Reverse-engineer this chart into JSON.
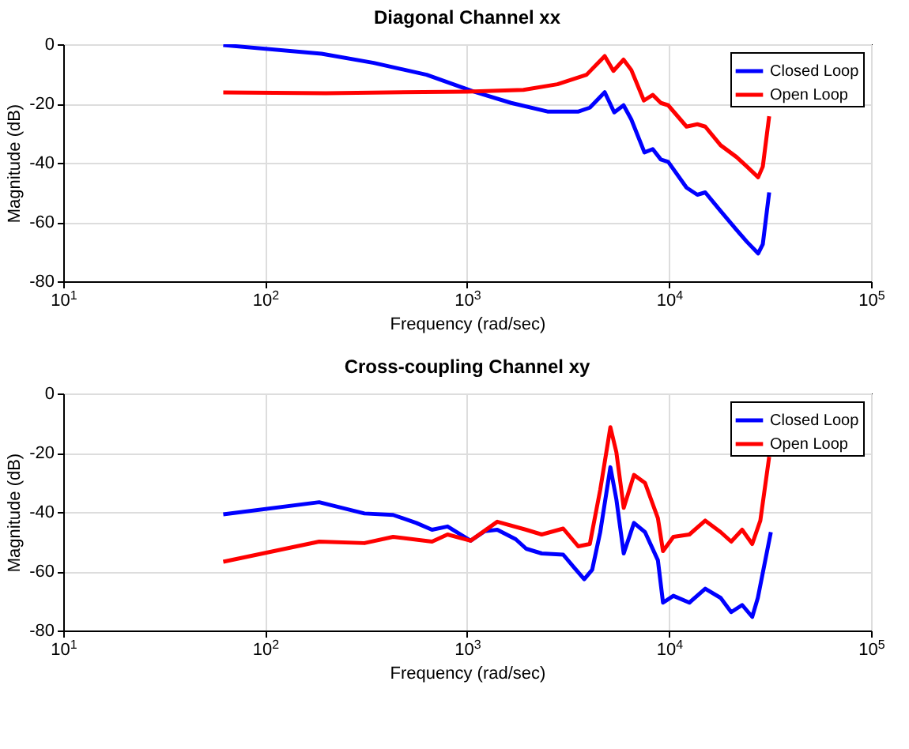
{
  "chart_data": [
    {
      "type": "line",
      "title": "Diagonal Channel xx",
      "xlabel": "Frequency (rad/sec)",
      "ylabel": "Magnitude (dB)",
      "log": "x",
      "grid": true,
      "legend": "top right",
      "xlim": [
        10,
        100000
      ],
      "xticks": [
        {
          "value": 10,
          "label": "10$^{1}$"
        },
        {
          "value": 100,
          "label": "10$^{2}$"
        },
        {
          "value": 1000,
          "label": "10$^{3}$"
        },
        {
          "value": 10000,
          "label": "10$^{4}$"
        },
        {
          "value": 100000,
          "label": "10$^{5}$"
        }
      ],
      "ylim": [
        -80,
        0
      ],
      "yticks": [
        -80,
        -60,
        -40,
        -20,
        0
      ],
      "series": [
        {
          "name": "Closed Loop",
          "color": "#0000ff",
          "x": [
            62,
            190,
            345,
            630,
            1070,
            1650,
            2500,
            3560,
            4050,
            4800,
            5350,
            5950,
            6500,
            7550,
            8300,
            9100,
            9900,
            12200,
            13800,
            15100,
            18000,
            21600,
            24300,
            27600,
            29100,
            31300
          ],
          "values": [
            -0.3,
            -3.2,
            -6.3,
            -10.3,
            -15.9,
            -19.8,
            -22.7,
            -22.7,
            -21.4,
            -16.2,
            -23,
            -20.6,
            -25.4,
            -36.5,
            -35.4,
            -38.9,
            -39.7,
            -48.4,
            -50.8,
            -50,
            -56.3,
            -62.7,
            -66.7,
            -70.6,
            -67.5,
            -50
          ]
        },
        {
          "name": "Open Loop",
          "color": "#ff0000",
          "x": [
            62,
            200,
            1000,
            1900,
            2800,
            3900,
            4800,
            5300,
            5950,
            6500,
            7500,
            8300,
            9100,
            9900,
            12200,
            13800,
            15100,
            18000,
            21600,
            24300,
            27600,
            29100,
            31300
          ],
          "values": [
            -16.3,
            -16.5,
            -16,
            -15.4,
            -13.5,
            -10.3,
            -4,
            -9,
            -5.2,
            -8.7,
            -19,
            -17.1,
            -19.8,
            -20.6,
            -27.8,
            -27,
            -27.8,
            -34.1,
            -38.1,
            -41.3,
            -44.9,
            -41.3,
            -24.3
          ]
        }
      ]
    },
    {
      "type": "line",
      "title": "Cross-coupling Channel xy",
      "xlabel": "Frequency (rad/sec)",
      "ylabel": "Magnitude (dB)",
      "log": "x",
      "grid": true,
      "legend": "top right",
      "xlim": [
        10,
        100000
      ],
      "xticks": [
        {
          "value": 10,
          "label": "10$^{1}$"
        },
        {
          "value": 100,
          "label": "10$^{2}$"
        },
        {
          "value": 1000,
          "label": "10$^{3}$"
        },
        {
          "value": 10000,
          "label": "10$^{4}$"
        },
        {
          "value": 100000,
          "label": "10$^{5}$"
        }
      ],
      "ylim": [
        -80,
        0
      ],
      "yticks": [
        -80,
        -60,
        -40,
        -20,
        0
      ],
      "series": [
        {
          "name": "Closed Loop",
          "color": "#0000ff",
          "x": [
            62,
            185,
            310,
            430,
            560,
            670,
            800,
            1040,
            1220,
            1410,
            1740,
            1960,
            2340,
            2990,
            3380,
            3800,
            4160,
            4560,
            5120,
            5480,
            5960,
            6700,
            7600,
            8800,
            9330,
            10500,
            12600,
            15100,
            18000,
            20300,
            23000,
            25800,
            27500,
            31900
          ],
          "values": [
            -40.8,
            -36.7,
            -40.5,
            -41,
            -43.7,
            -46,
            -44.9,
            -49.7,
            -46.5,
            -46,
            -49.2,
            -52.4,
            -54,
            -54.4,
            -58.7,
            -62.7,
            -59.5,
            -46.8,
            -24.9,
            -35.7,
            -54,
            -43.7,
            -46.8,
            -56.3,
            -70.6,
            -68.3,
            -70.6,
            -65.9,
            -69,
            -73.8,
            -71.4,
            -75.4,
            -69,
            -46.8
          ]
        },
        {
          "name": "Open Loop",
          "color": "#ff0000",
          "x": [
            62,
            185,
            310,
            430,
            670,
            800,
            1040,
            1410,
            1960,
            2340,
            2990,
            3550,
            4050,
            4560,
            5120,
            5480,
            5960,
            6700,
            7600,
            8800,
            9330,
            10500,
            12600,
            15100,
            18000,
            20300,
            23000,
            25800,
            28300,
            31300
          ],
          "values": [
            -56.8,
            -50,
            -50.5,
            -48.4,
            -50,
            -47.6,
            -49.7,
            -43.3,
            -46,
            -47.6,
            -45.6,
            -51.6,
            -50.8,
            -32.5,
            -11.4,
            -19.8,
            -38.6,
            -27.5,
            -30.2,
            -42.1,
            -53.2,
            -48.4,
            -47.6,
            -42.9,
            -46.8,
            -50,
            -46,
            -50.8,
            -42.9,
            -21.4
          ]
        }
      ]
    }
  ]
}
